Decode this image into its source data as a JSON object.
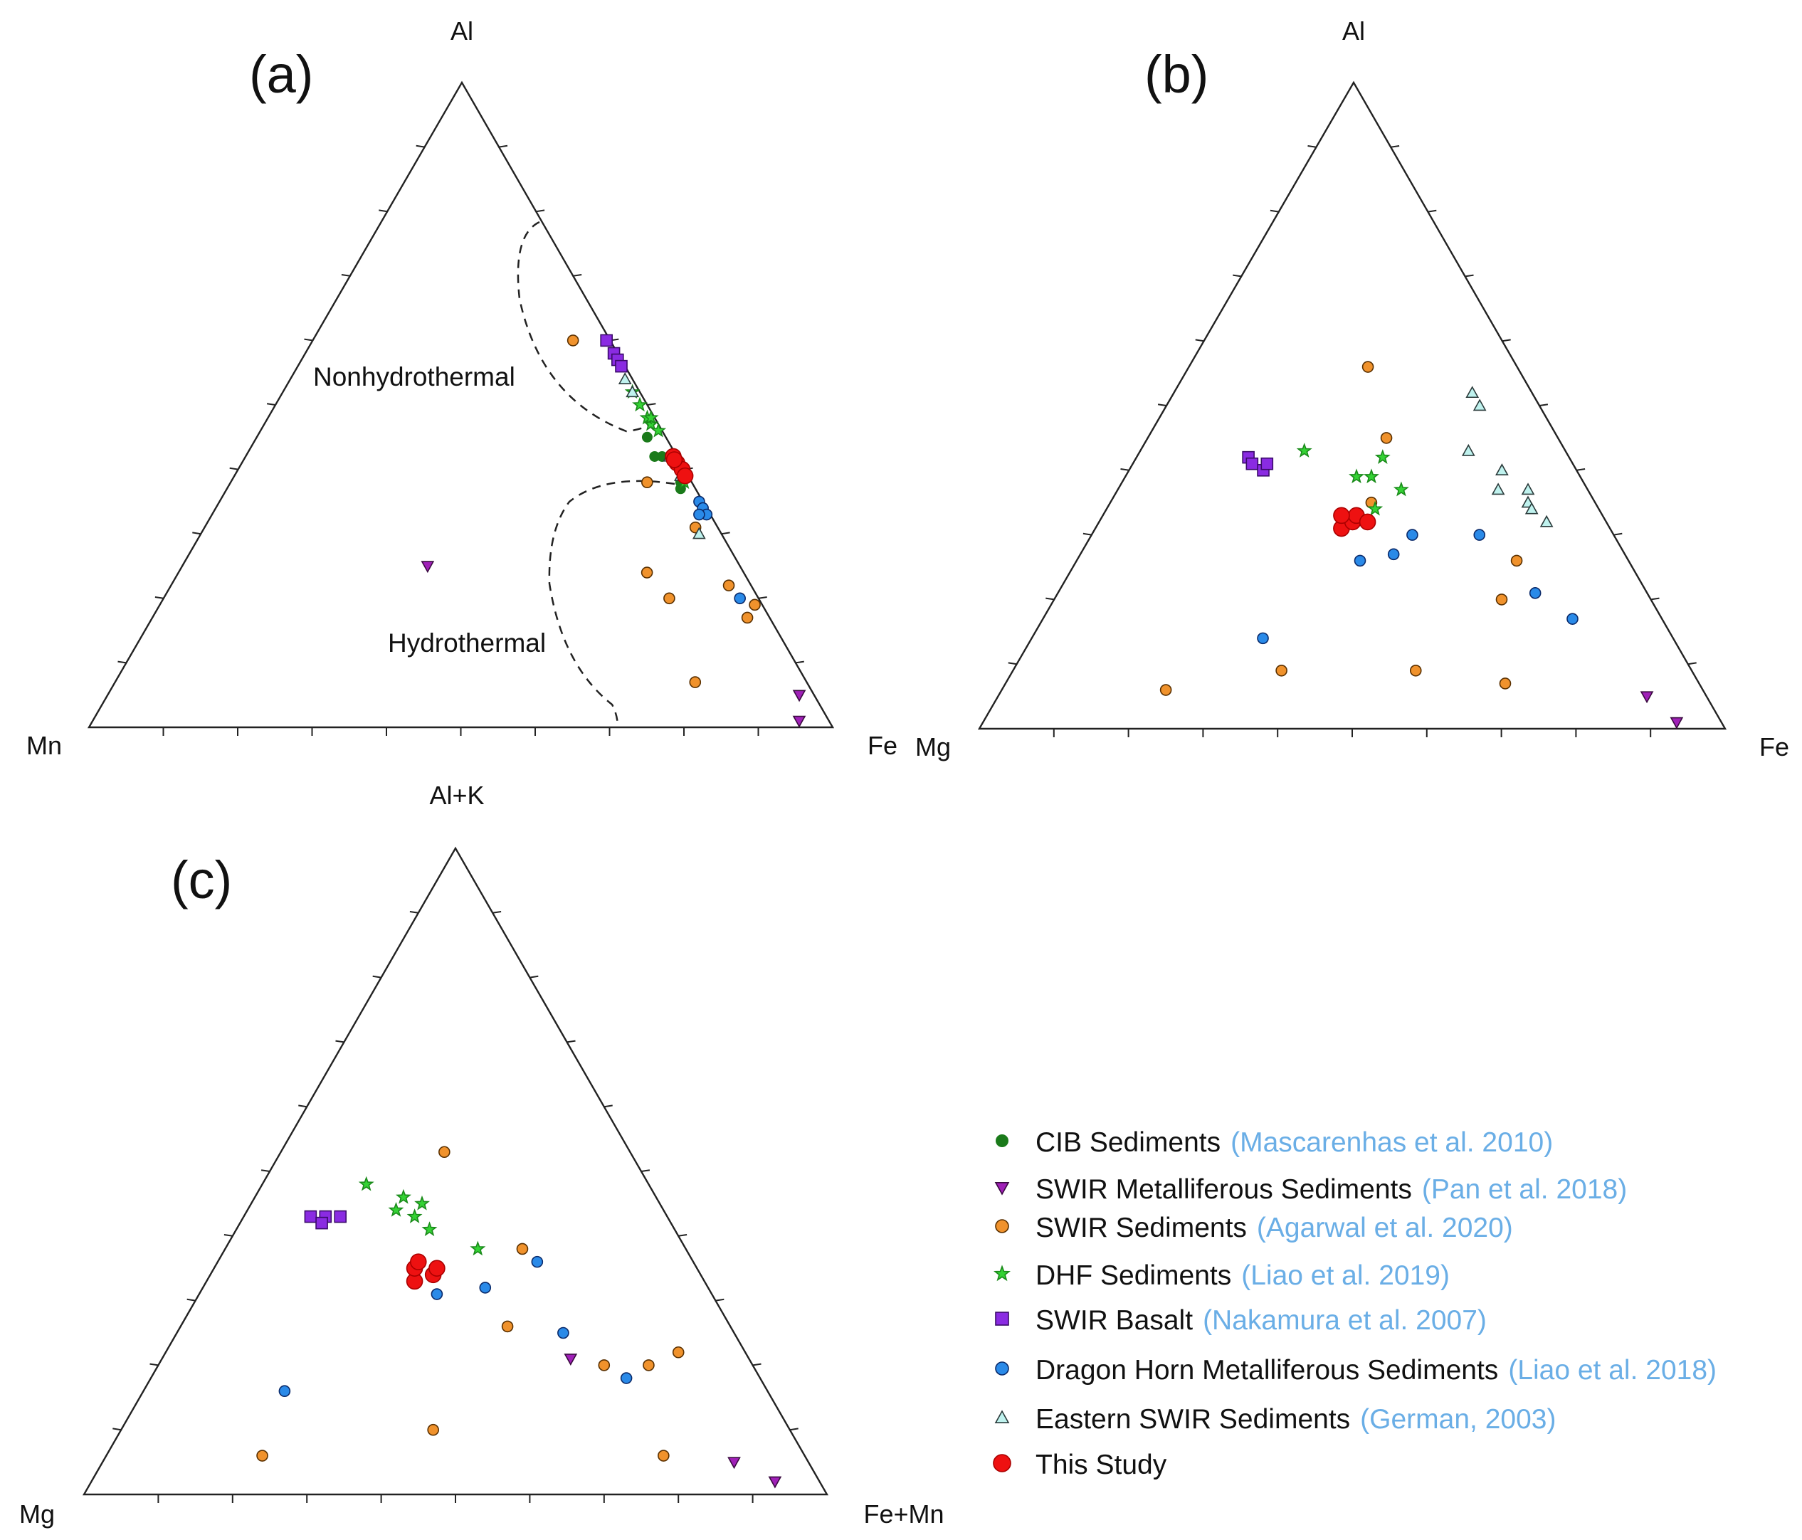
{
  "chart_data": [
    {
      "type": "scatter",
      "subtype": "ternary",
      "panel": "(a)",
      "vertices": {
        "top": "Al",
        "left": "Mn",
        "right": "Fe"
      },
      "regions": [
        {
          "label": "Nonhydrothermal"
        },
        {
          "label": "Hydrothermal"
        }
      ],
      "series": [
        {
          "key": "cib",
          "points": [
            [
              2.5,
              45,
              52.5
            ],
            [
              3,
              42,
              55
            ],
            [
              2,
              42,
              56
            ],
            [
              2,
              37,
              61
            ],
            [
              1.5,
              38,
              60.5
            ]
          ]
        },
        {
          "key": "swir_met",
          "points": [
            [
              42,
              25,
              33
            ],
            [
              2,
              5,
              93
            ],
            [
              4,
              1,
              95
            ]
          ]
        },
        {
          "key": "swir_sed",
          "points": [
            [
              5,
              60,
              35
            ],
            [
              6,
              38,
              56
            ],
            [
              3,
              31,
              66
            ],
            [
              12,
              20,
              68
            ],
            [
              13,
              24,
              63
            ],
            [
              15,
              7,
              78
            ],
            [
              3,
              22,
              75
            ],
            [
              1,
              19,
              80
            ],
            [
              3,
              17,
              80
            ]
          ]
        },
        {
          "key": "dhf",
          "points": [
            [
              1,
              52,
              47
            ],
            [
              1,
              50,
              49
            ],
            [
              1,
              47,
              52
            ],
            [
              1,
              48,
              51
            ],
            [
              0.5,
              46,
              53.5
            ],
            [
              0.5,
              48,
              51.5
            ],
            [
              1,
              38,
              61
            ]
          ]
        },
        {
          "key": "basalt",
          "points": [
            [
              0.5,
              60,
              39.5
            ],
            [
              0.5,
              58,
              41.5
            ],
            [
              0.5,
              57,
              42.5
            ],
            [
              0.5,
              56,
              43.5
            ]
          ]
        },
        {
          "key": "dragon",
          "points": [
            [
              0.5,
              35,
              64.5
            ],
            [
              0.5,
              34,
              65.5
            ],
            [
              0.5,
              33,
              66.5
            ],
            [
              1.5,
              33,
              65.5
            ],
            [
              2.5,
              20,
              77.5
            ]
          ]
        },
        {
          "key": "german",
          "points": [
            [
              1,
              54,
              45
            ],
            [
              1,
              52,
              47
            ],
            [
              1,
              42,
              57
            ],
            [
              1,
              39,
              60
            ],
            [
              3,
              30,
              67
            ]
          ]
        },
        {
          "key": "this",
          "points": [
            [
              0.5,
              42,
              57.5
            ],
            [
              0.5,
              41,
              58.5
            ],
            [
              0.3,
              40,
              59.7
            ],
            [
              0.4,
              39,
              60.6
            ],
            [
              0.6,
              41.5,
              57.9
            ]
          ]
        }
      ]
    },
    {
      "type": "scatter",
      "subtype": "ternary",
      "panel": "(b)",
      "vertices": {
        "top": "Al",
        "left": "Mg",
        "right": "Fe"
      },
      "series": [
        {
          "key": "swir_met",
          "points": [
            [
              8,
              5,
              87
            ],
            [
              6,
              1,
              93
            ]
          ]
        },
        {
          "key": "swir_sed",
          "points": [
            [
              20,
              56,
              24
            ],
            [
              23,
              45,
              32
            ],
            [
              30,
              35,
              35
            ],
            [
              15,
              26,
              59
            ],
            [
              37,
              9,
              54
            ],
            [
              55,
              9,
              36
            ],
            [
              72,
              6,
              22
            ],
            [
              26,
              7,
              67
            ],
            [
              20,
              20,
              60
            ]
          ]
        },
        {
          "key": "dhf",
          "points": [
            [
              35,
              43,
              22
            ],
            [
              25,
              42,
              33
            ],
            [
              30,
              39,
              31
            ],
            [
              28,
              39,
              33
            ],
            [
              25,
              37,
              38
            ],
            [
              30,
              34,
              36
            ]
          ]
        },
        {
          "key": "basalt",
          "points": [
            [
              43,
              42,
              15
            ],
            [
              43,
              41,
              16
            ],
            [
              42,
              40,
              18
            ],
            [
              41,
              41,
              18
            ]
          ]
        },
        {
          "key": "dragon",
          "points": [
            [
              36,
              26,
              38
            ],
            [
              31,
              27,
              42
            ],
            [
              27,
              30,
              43
            ],
            [
              18,
              30,
              52
            ],
            [
              15,
              21,
              64
            ],
            [
              12,
              17,
              71
            ],
            [
              55,
              14,
              31
            ]
          ]
        },
        {
          "key": "german",
          "points": [
            [
              8,
              52,
              40
            ],
            [
              8,
              50,
              42
            ],
            [
              13,
              43,
              44
            ],
            [
              10,
              40,
              50
            ],
            [
              12,
              37,
              51
            ],
            [
              9,
              35,
              56
            ],
            [
              9,
              34,
              57
            ],
            [
              8,
              32,
              60
            ],
            [
              8,
              37,
              55
            ]
          ]
        },
        {
          "key": "this",
          "points": [
            [
              36,
              31,
              33
            ],
            [
              34,
              32,
              34
            ],
            [
              33,
              33,
              34
            ],
            [
              32,
              32,
              36
            ],
            [
              35,
              33,
              32
            ]
          ]
        }
      ]
    },
    {
      "type": "scatter",
      "subtype": "ternary",
      "panel": "(c)",
      "vertices": {
        "top": "Al+K",
        "left": "Mg",
        "right": "Fe+Mn"
      },
      "series": [
        {
          "key": "swir_met",
          "points": [
            [
              24,
              21,
              55
            ],
            [
              10,
              5,
              85
            ],
            [
              6,
              2,
              92
            ]
          ]
        },
        {
          "key": "swir_sed",
          "points": [
            [
              25,
              53,
              22
            ],
            [
              22,
              38,
              40
            ],
            [
              30,
              26,
              44
            ],
            [
              20,
              20,
              60
            ],
            [
              14,
              20,
              66
            ],
            [
              48,
              10,
              42
            ],
            [
              73,
              6,
              21
            ],
            [
              19,
              6,
              75
            ],
            [
              9,
              22,
              69
            ]
          ]
        },
        {
          "key": "dhf",
          "points": [
            [
              38,
              48,
              14
            ],
            [
              34,
              46,
              20
            ],
            [
              32,
              45,
              23
            ],
            [
              36,
              44,
              20
            ],
            [
              33,
              41,
              26
            ],
            [
              28,
              38,
              34
            ],
            [
              34,
              43,
              23
            ]
          ]
        },
        {
          "key": "basalt",
          "points": [
            [
              48,
              43,
              9
            ],
            [
              46,
              43,
              11
            ],
            [
              47,
              42,
              11
            ],
            [
              44,
              43,
              13
            ]
          ]
        },
        {
          "key": "dragon",
          "points": [
            [
              37,
              31,
              32
            ],
            [
              30,
              32,
              38
            ],
            [
              21,
              36,
              43
            ],
            [
              23,
              25,
              52
            ],
            [
              18,
              18,
              64
            ],
            [
              65,
              16,
              19
            ]
          ]
        },
        {
          "key": "this",
          "points": [
            [
              39,
              33,
              28
            ],
            [
              36,
              34,
              30
            ],
            [
              38,
              35,
              27
            ],
            [
              35,
              35,
              30
            ],
            [
              37,
              36,
              27
            ]
          ]
        }
      ]
    }
  ],
  "legend": [
    {
      "key": "cib",
      "name": "CIB Sediments",
      "cite": "(Mascarenhas et al. 2010)",
      "marker": "circle",
      "fill": "#1a7a1a",
      "stroke": "none"
    },
    {
      "key": "swir_met",
      "name": "SWIR Metalliferous Sediments",
      "cite": "(Pan et al. 2018)",
      "marker": "triangle-down",
      "fill": "#a020b8",
      "stroke": "#3a0a40"
    },
    {
      "key": "swir_sed",
      "name": "SWIR Sediments",
      "cite": "(Agarwal et al. 2020)",
      "marker": "circle",
      "fill": "#f0922c",
      "stroke": "#5a3000"
    },
    {
      "key": "dhf",
      "name": "DHF Sediments",
      "cite": "(Liao et al. 2019)",
      "marker": "star",
      "fill": "#34d234",
      "stroke": "#1a8a1a"
    },
    {
      "key": "basalt",
      "name": "SWIR Basalt",
      "cite": "(Nakamura et al. 2007)",
      "marker": "square",
      "fill": "#8a2be2",
      "stroke": "#3a0a6a"
    },
    {
      "key": "dragon",
      "name": "Dragon Horn Metalliferous Sediments",
      "cite": "(Liao et al. 2018)",
      "marker": "circle",
      "fill": "#2a8ae8",
      "stroke": "#0a2a6a"
    },
    {
      "key": "german",
      "name": "Eastern SWIR Sediments",
      "cite": "(German, 2003)",
      "marker": "triangle-up",
      "fill": "#bff2ee",
      "stroke": "#2a3a3a"
    },
    {
      "key": "this",
      "name": "This Study",
      "cite": "",
      "marker": "circle",
      "fill": "#ee1111",
      "stroke": "#aa0000"
    }
  ]
}
